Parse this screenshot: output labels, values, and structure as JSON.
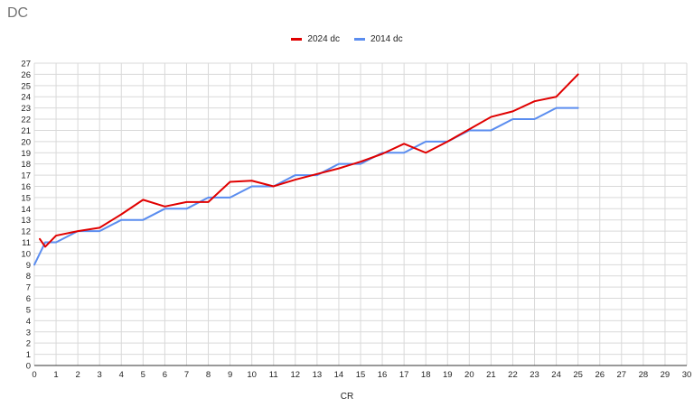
{
  "chart_data": {
    "type": "line",
    "title": "DC",
    "xlabel": "CR",
    "ylabel": "",
    "xlim": [
      0,
      30
    ],
    "ylim": [
      0,
      27
    ],
    "x_ticks": [
      "0",
      "1",
      "2",
      "3",
      "4",
      "5",
      "6",
      "7",
      "8",
      "9",
      "10",
      "11",
      "12",
      "13",
      "14",
      "15",
      "16",
      "17",
      "18",
      "19",
      "20",
      "21",
      "22",
      "23",
      "24",
      "25",
      "26",
      "27",
      "28",
      "29",
      "30"
    ],
    "y_ticks": [
      "0",
      "1",
      "2",
      "3",
      "4",
      "5",
      "6",
      "7",
      "8",
      "9",
      "10",
      "11",
      "12",
      "13",
      "14",
      "15",
      "16",
      "17",
      "18",
      "19",
      "20",
      "21",
      "22",
      "23",
      "24",
      "25",
      "26",
      "27"
    ],
    "grid": true,
    "legend_position": "top",
    "series": [
      {
        "name": "2024 dc",
        "color": "#e00000",
        "points": [
          [
            0.25,
            11.3
          ],
          [
            0.5,
            10.6
          ],
          [
            1,
            11.6
          ],
          [
            2,
            12.0
          ],
          [
            3,
            12.3
          ],
          [
            4,
            13.5
          ],
          [
            5,
            14.8
          ],
          [
            6,
            14.2
          ],
          [
            7,
            14.6
          ],
          [
            8,
            14.6
          ],
          [
            9,
            16.4
          ],
          [
            10,
            16.5
          ],
          [
            11,
            16.0
          ],
          [
            12,
            16.6
          ],
          [
            13,
            17.1
          ],
          [
            14,
            17.6
          ],
          [
            15,
            18.2
          ],
          [
            16,
            18.9
          ],
          [
            17,
            19.8
          ],
          [
            18,
            19.0
          ],
          [
            19,
            20.0
          ],
          [
            20,
            21.1
          ],
          [
            21,
            22.2
          ],
          [
            22,
            22.7
          ],
          [
            23,
            23.6
          ],
          [
            24,
            24.0
          ],
          [
            25,
            26.0
          ]
        ]
      },
      {
        "name": "2014 dc",
        "color": "#5b8def",
        "points": [
          [
            0,
            9.0
          ],
          [
            0.125,
            9.5
          ],
          [
            0.25,
            10.0
          ],
          [
            0.5,
            11.0
          ],
          [
            1,
            11.0
          ],
          [
            2,
            12.0
          ],
          [
            3,
            12.0
          ],
          [
            4,
            13.0
          ],
          [
            5,
            13.0
          ],
          [
            6,
            14.0
          ],
          [
            7,
            14.0
          ],
          [
            8,
            15.0
          ],
          [
            9,
            15.0
          ],
          [
            10,
            16.0
          ],
          [
            11,
            16.0
          ],
          [
            12,
            17.0
          ],
          [
            13,
            17.0
          ],
          [
            14,
            18.0
          ],
          [
            15,
            18.0
          ],
          [
            16,
            19.0
          ],
          [
            17,
            19.0
          ],
          [
            18,
            20.0
          ],
          [
            19,
            20.0
          ],
          [
            20,
            21.0
          ],
          [
            21,
            21.0
          ],
          [
            22,
            22.0
          ],
          [
            23,
            22.0
          ],
          [
            24,
            23.0
          ],
          [
            25,
            23.0
          ]
        ]
      }
    ]
  }
}
